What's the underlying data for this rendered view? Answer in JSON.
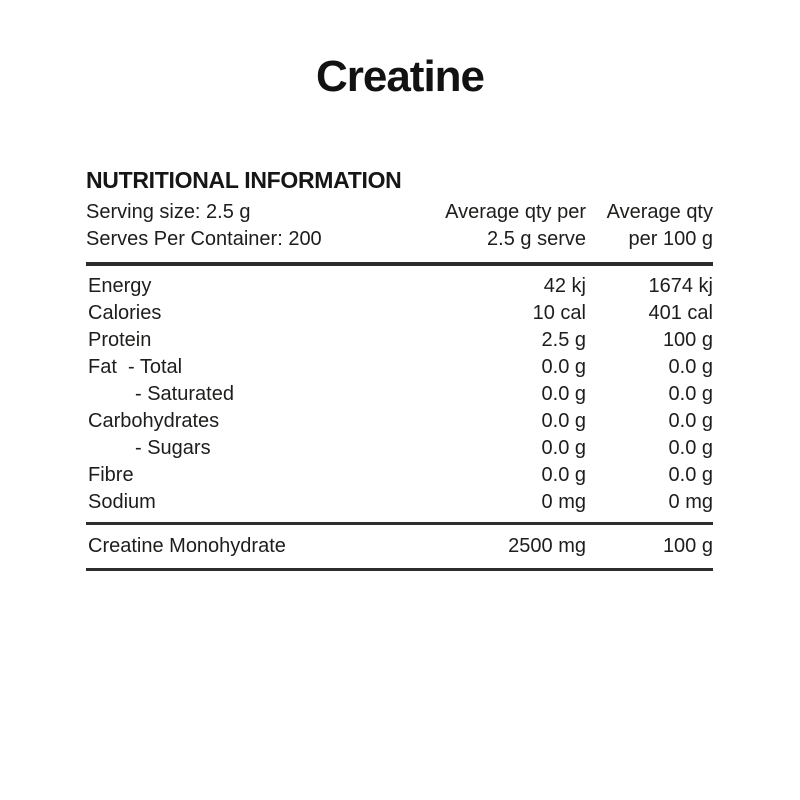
{
  "page": {
    "title": "Creatine"
  },
  "panel": {
    "heading": "NUTRITIONAL INFORMATION",
    "header": {
      "serving_size": "Serving size: 2.5 g",
      "serves_per_container": "Serves Per Container: 200",
      "per_serve_line1": "Average qty per",
      "per_serve_line2": "2.5 g serve",
      "per_100g_line1": "Average qty",
      "per_100g_line2": "per 100 g"
    },
    "rows": [
      {
        "label": "Energy",
        "per_serve": "42 kj",
        "per_100g": "1674 kj"
      },
      {
        "label": "Calories",
        "per_serve": "10 cal",
        "per_100g": "401 cal"
      },
      {
        "label": "Protein",
        "per_serve": "2.5 g",
        "per_100g": "100 g"
      },
      {
        "label": "Fat  - Total",
        "per_serve": "0.0 g",
        "per_100g": "0.0 g"
      },
      {
        "label": "- Saturated",
        "per_serve": "0.0 g",
        "per_100g": "0.0 g"
      },
      {
        "label": "Carbohydrates",
        "per_serve": "0.0 g",
        "per_100g": "0.0 g"
      },
      {
        "label": "- Sugars",
        "per_serve": "0.0 g",
        "per_100g": "0.0 g"
      },
      {
        "label": "Fibre",
        "per_serve": "0.0 g",
        "per_100g": "0.0 g"
      },
      {
        "label": "Sodium",
        "per_serve": "0 mg",
        "per_100g": "0 mg"
      }
    ],
    "footer_row": {
      "label": "Creatine Monohydrate",
      "per_serve": "2500 mg",
      "per_100g": "100 g"
    }
  },
  "colors": {
    "background": "#ffffff",
    "text": "#1d1d1b",
    "rule": "#2d2d2d"
  }
}
